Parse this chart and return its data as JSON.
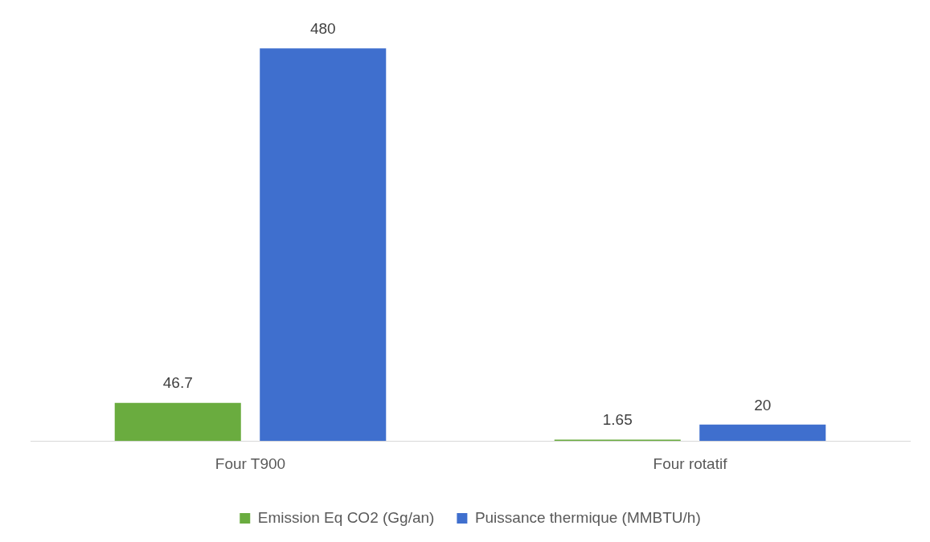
{
  "chart_data": {
    "type": "bar",
    "categories": [
      "Four T900",
      "Four rotatif"
    ],
    "series": [
      {
        "name": "Emission Eq CO2 (Gg/an)",
        "color": "#6aac3f",
        "values": [
          46.7,
          1.65
        ]
      },
      {
        "name": "Puissance thermique (MMBTU/h)",
        "color": "#3f6fce",
        "values": [
          480,
          20
        ]
      }
    ],
    "data_labels": true,
    "legend": "bottom",
    "grid": false
  }
}
